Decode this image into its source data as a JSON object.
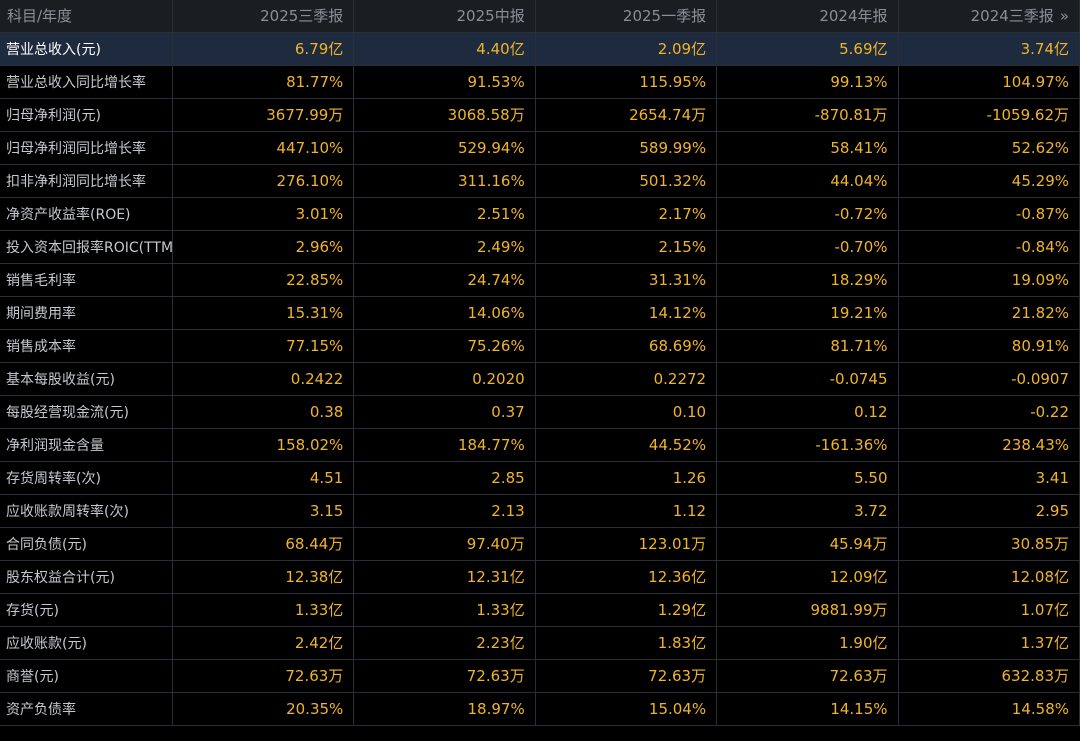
{
  "header": {
    "label": "科目/年度",
    "periods": [
      "2025三季报",
      "2025中报",
      "2025一季报",
      "2024年报",
      "2024三季报"
    ],
    "more_glyph": "»"
  },
  "rows": [
    {
      "label": "营业总收入(元)",
      "values": [
        "6.79亿",
        "4.40亿",
        "2.09亿",
        "5.69亿",
        "3.74亿"
      ]
    },
    {
      "label": "营业总收入同比增长率",
      "values": [
        "81.77%",
        "91.53%",
        "115.95%",
        "99.13%",
        "104.97%"
      ]
    },
    {
      "label": "归母净利润(元)",
      "values": [
        "3677.99万",
        "3068.58万",
        "2654.74万",
        "-870.81万",
        "-1059.62万"
      ]
    },
    {
      "label": "归母净利润同比增长率",
      "values": [
        "447.10%",
        "529.94%",
        "589.99%",
        "58.41%",
        "52.62%"
      ]
    },
    {
      "label": "扣非净利润同比增长率",
      "values": [
        "276.10%",
        "311.16%",
        "501.32%",
        "44.04%",
        "45.29%"
      ]
    },
    {
      "label": "净资产收益率(ROE)",
      "values": [
        "3.01%",
        "2.51%",
        "2.17%",
        "-0.72%",
        "-0.87%"
      ]
    },
    {
      "label": "投入资本回报率ROIC(TTM)",
      "values": [
        "2.96%",
        "2.49%",
        "2.15%",
        "-0.70%",
        "-0.84%"
      ]
    },
    {
      "label": "销售毛利率",
      "values": [
        "22.85%",
        "24.74%",
        "31.31%",
        "18.29%",
        "19.09%"
      ]
    },
    {
      "label": "期间费用率",
      "values": [
        "15.31%",
        "14.06%",
        "14.12%",
        "19.21%",
        "21.82%"
      ]
    },
    {
      "label": "销售成本率",
      "values": [
        "77.15%",
        "75.26%",
        "68.69%",
        "81.71%",
        "80.91%"
      ]
    },
    {
      "label": "基本每股收益(元)",
      "values": [
        "0.2422",
        "0.2020",
        "0.2272",
        "-0.0745",
        "-0.0907"
      ]
    },
    {
      "label": "每股经营现金流(元)",
      "values": [
        "0.38",
        "0.37",
        "0.10",
        "0.12",
        "-0.22"
      ]
    },
    {
      "label": "净利润现金含量",
      "values": [
        "158.02%",
        "184.77%",
        "44.52%",
        "-161.36%",
        "238.43%"
      ]
    },
    {
      "label": "存货周转率(次)",
      "values": [
        "4.51",
        "2.85",
        "1.26",
        "5.50",
        "3.41"
      ]
    },
    {
      "label": "应收账款周转率(次)",
      "values": [
        "3.15",
        "2.13",
        "1.12",
        "3.72",
        "2.95"
      ]
    },
    {
      "label": "合同负债(元)",
      "values": [
        "68.44万",
        "97.40万",
        "123.01万",
        "45.94万",
        "30.85万"
      ]
    },
    {
      "label": "股东权益合计(元)",
      "values": [
        "12.38亿",
        "12.31亿",
        "12.36亿",
        "12.09亿",
        "12.08亿"
      ]
    },
    {
      "label": "存货(元)",
      "values": [
        "1.33亿",
        "1.33亿",
        "1.29亿",
        "9881.99万",
        "1.07亿"
      ]
    },
    {
      "label": "应收账款(元)",
      "values": [
        "2.42亿",
        "2.23亿",
        "1.83亿",
        "1.90亿",
        "1.37亿"
      ]
    },
    {
      "label": "商誉(元)",
      "values": [
        "72.63万",
        "72.63万",
        "72.63万",
        "72.63万",
        "632.83万"
      ]
    },
    {
      "label": "资产负债率",
      "values": [
        "20.35%",
        "18.97%",
        "15.04%",
        "14.15%",
        "14.58%"
      ]
    }
  ],
  "selected_row_index": 0,
  "colors": {
    "background": "#000000",
    "header_bg": "#1a1d22",
    "header_text": "#8a8f98",
    "label_text": "#c4c7cc",
    "value_text": "#f0b429",
    "selected_row_bg": "#1e2a3e",
    "grid_line": "#2a2e36"
  }
}
